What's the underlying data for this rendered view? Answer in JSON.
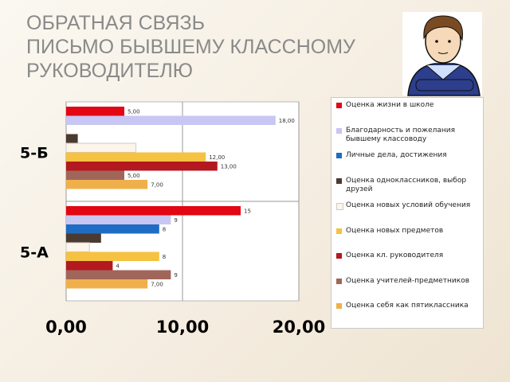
{
  "title_lines": [
    "ОБРАТНАЯ СВЯЗЬ",
    "ПИСЬМО БЫВШЕМУ КЛАССНОМУ",
    "РУКОВОДИТЕЛЮ"
  ],
  "chart_data": {
    "type": "bar",
    "orientation": "horizontal",
    "categories": [
      "5-Б",
      "5-А"
    ],
    "series": [
      {
        "name": "Оценка жизни в школе",
        "color": "#e30613",
        "values": [
          5,
          15
        ],
        "value_labels": [
          "5,00",
          "15"
        ]
      },
      {
        "name": "Благодарность и пожелания бывшему классоводу",
        "color": "#c8c6f2",
        "values": [
          18,
          9
        ],
        "value_labels": [
          "18,00",
          "9"
        ]
      },
      {
        "name": "Личные дела, достижения",
        "color": "#1e6cc4",
        "values": [
          null,
          8
        ],
        "value_labels": [
          null,
          "8"
        ]
      },
      {
        "name": "Оценка одноклассников, выбор друзей",
        "color": "#4b3a2f",
        "values": [
          1,
          3
        ],
        "value_labels": [
          null,
          null
        ]
      },
      {
        "name": "Оценка новых условий обучения",
        "color": "#fdf4ea",
        "values": [
          6,
          2
        ],
        "value_labels": [
          null,
          null
        ]
      },
      {
        "name": "Оценка новых предметов",
        "color": "#f5c242",
        "values": [
          12,
          8
        ],
        "value_labels": [
          "12,00",
          "8"
        ]
      },
      {
        "name": "Оценка кл. руководителя",
        "color": "#b3191e",
        "values": [
          13,
          4
        ],
        "value_labels": [
          "13,00",
          "4"
        ]
      },
      {
        "name": "Оценка учителей-предметников",
        "color": "#a0665a",
        "values": [
          5,
          9
        ],
        "value_labels": [
          "5,00",
          "9"
        ]
      },
      {
        "name": "Оценка себя как пятиклассника",
        "color": "#efb04c",
        "values": [
          7,
          7
        ],
        "value_labels": [
          "7,00",
          "7,00"
        ]
      }
    ],
    "xlim": [
      0,
      20
    ],
    "xticks": [
      {
        "value": 0,
        "label": "0,00"
      },
      {
        "value": 10,
        "label": "10,00"
      },
      {
        "value": 20,
        "label": "20,00"
      }
    ],
    "grid": true
  }
}
